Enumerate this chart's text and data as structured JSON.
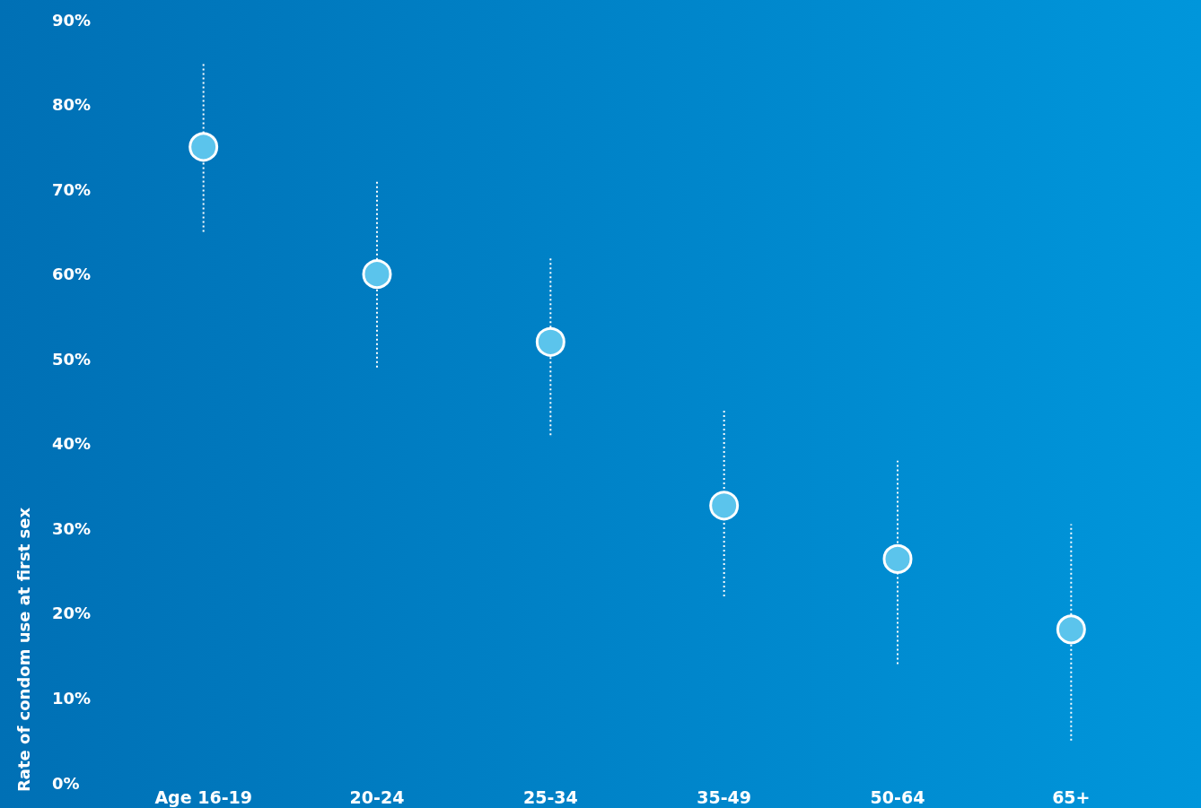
{
  "chart_data": {
    "type": "scatter",
    "ylabel": "Rate of condom use at first sex",
    "categories": [
      "Age 16-19",
      "20-24",
      "25-34",
      "35-49",
      "50-64",
      "65+"
    ],
    "values": [
      75,
      60,
      52,
      32.7,
      26.4,
      18.1
    ],
    "errors": [
      [
        65,
        85
      ],
      [
        49,
        71
      ],
      [
        41,
        62
      ],
      [
        22,
        44
      ],
      [
        14,
        38
      ],
      [
        5,
        30.5
      ]
    ],
    "color": "#5bc4ec",
    "marker": "circle",
    "grid": false,
    "ylim": [
      0,
      90
    ],
    "yticks": [
      {
        "value": 0,
        "label": "0%"
      },
      {
        "value": 10,
        "label": "10%"
      },
      {
        "value": 20,
        "label": "20%"
      },
      {
        "value": 30,
        "label": "30%"
      },
      {
        "value": 40,
        "label": "40%"
      },
      {
        "value": 50,
        "label": "50%"
      },
      {
        "value": 60,
        "label": "60%"
      },
      {
        "value": 70,
        "label": "70%"
      },
      {
        "value": 80,
        "label": "80%"
      },
      {
        "value": 90,
        "label": "90%"
      }
    ]
  }
}
